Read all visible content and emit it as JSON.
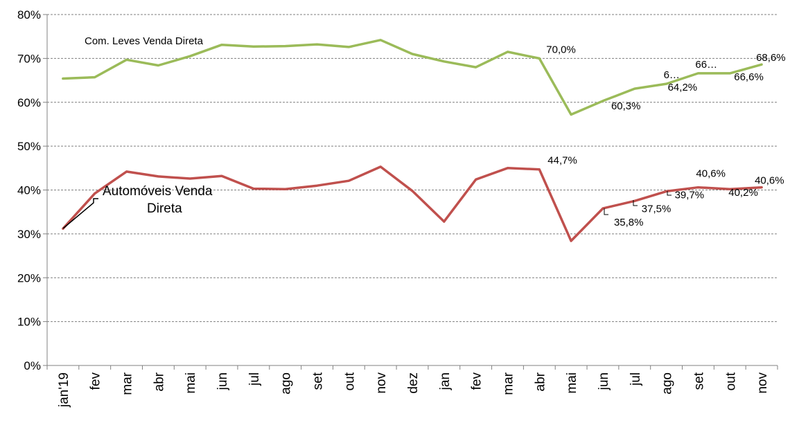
{
  "chart_data": {
    "type": "line",
    "categories": [
      "jan'19",
      "fev",
      "mar",
      "abr",
      "mai",
      "jun",
      "jul",
      "ago",
      "set",
      "out",
      "nov",
      "dez",
      "jan",
      "fev",
      "mar",
      "abr",
      "mai",
      "jun",
      "jul",
      "ago",
      "set",
      "out",
      "nov"
    ],
    "ylim": [
      0,
      80
    ],
    "yticks": [
      "0%",
      "10%",
      "20%",
      "30%",
      "40%",
      "50%",
      "60%",
      "70%",
      "80%"
    ],
    "grid": true,
    "series": [
      {
        "name": "Com. Leves Venda Direta",
        "color": "#9bbb59",
        "values": [
          65.4,
          65.7,
          69.7,
          68.4,
          70.5,
          73.1,
          72.7,
          72.8,
          73.2,
          72.6,
          74.2,
          71.0,
          69.3,
          68.0,
          71.5,
          70.0,
          57.2,
          60.3,
          63.1,
          64.2,
          66.6,
          66.6,
          68.6
        ],
        "labels": [
          {
            "index": 15,
            "text": "70,0%"
          },
          {
            "index": 17,
            "text": "60,3%"
          },
          {
            "index": 19,
            "text": "6…"
          },
          {
            "index": 19,
            "text": "64,2%"
          },
          {
            "index": 20,
            "text": "66…"
          },
          {
            "index": 21,
            "text": "66,6%"
          },
          {
            "index": 22,
            "text": "68,6%"
          }
        ]
      },
      {
        "name": "Automóveis Venda Direta",
        "color": "#c0504d",
        "values": [
          31.2,
          39.2,
          44.2,
          43.1,
          42.6,
          43.2,
          40.3,
          40.2,
          41.0,
          42.1,
          45.3,
          39.8,
          32.8,
          42.4,
          45.0,
          44.7,
          28.4,
          35.8,
          37.5,
          39.7,
          40.6,
          40.2,
          40.6
        ],
        "labels": [
          {
            "index": 15,
            "text": "44,7%"
          },
          {
            "index": 17,
            "text": "35,8%"
          },
          {
            "index": 18,
            "text": "37,5%"
          },
          {
            "index": 19,
            "text": "39,7%"
          },
          {
            "index": 20,
            "text": "40,6%"
          },
          {
            "index": 21,
            "text": "40,2%"
          },
          {
            "index": 22,
            "text": "40,6%"
          }
        ]
      }
    ]
  }
}
